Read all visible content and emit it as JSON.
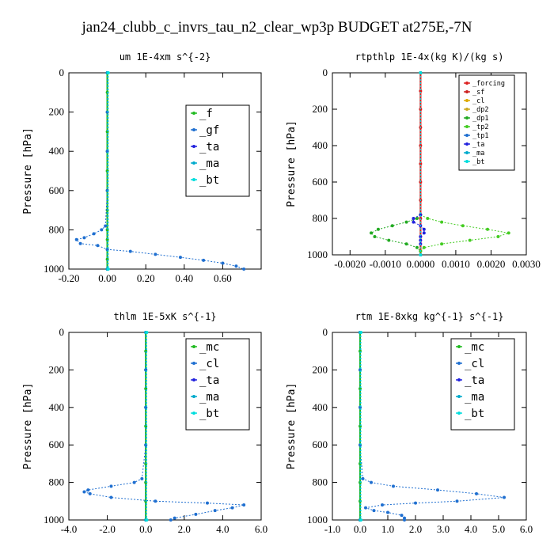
{
  "figure_title": "jan24_clubb_c_invrs_tau_n2_clear_wp3p  BUDGET at275E,-7N",
  "chart_data": [
    {
      "type": "line",
      "title": "um  1E-4xm s^{-2}",
      "ylabel": "Pressure [hPa]",
      "xlabel": "",
      "xlim": [
        -0.2,
        0.8
      ],
      "ylim": [
        1000,
        0
      ],
      "xticks": [
        "-0.20",
        "0.00",
        "0.20",
        "0.40",
        "0.60"
      ],
      "yticks": [
        "0",
        "200",
        "400",
        "600",
        "800",
        "1000"
      ],
      "legend": [
        "_f",
        "_gf",
        "_ta",
        "_ma",
        "_bt"
      ],
      "series": [
        {
          "name": "_f",
          "color": "#22bb22",
          "p": [
            0,
            100,
            200,
            300,
            400,
            500,
            600,
            700,
            800,
            850,
            900,
            950,
            1000
          ],
          "x": [
            0,
            0,
            0,
            0,
            0,
            0,
            0,
            0,
            0,
            0,
            0,
            0,
            0
          ]
        },
        {
          "name": "_gf",
          "color": "#1f6fd0",
          "p": [
            0,
            200,
            400,
            600,
            780,
            800,
            820,
            840,
            850,
            870,
            880,
            900,
            910,
            925,
            940,
            955,
            970,
            985,
            1000
          ],
          "x": [
            0,
            0,
            0,
            0,
            -0.01,
            -0.03,
            -0.07,
            -0.12,
            -0.16,
            -0.14,
            -0.05,
            0.0,
            0.12,
            0.25,
            0.38,
            0.5,
            0.6,
            0.67,
            0.71
          ]
        },
        {
          "name": "_ta",
          "color": "#2222dd",
          "p": [
            0,
            1000
          ],
          "x": [
            0,
            0
          ]
        },
        {
          "name": "_ma",
          "color": "#00aacc",
          "p": [
            0,
            1000
          ],
          "x": [
            0,
            0
          ]
        },
        {
          "name": "_bt",
          "color": "#00dddd",
          "p": [
            0,
            1000
          ],
          "x": [
            0.005,
            0.005
          ]
        }
      ]
    },
    {
      "type": "line",
      "title": "rtpthlp  1E-4x(kg K)/(kg s)",
      "ylabel": "Pressure [hPa]",
      "xlabel": "",
      "xlim": [
        -0.0025,
        0.003
      ],
      "ylim": [
        1000,
        0
      ],
      "xticks": [
        "-0.0020",
        "-0.0010",
        "0.0000",
        "0.0010",
        "0.0020",
        "0.0030"
      ],
      "yticks": [
        "0",
        "200",
        "400",
        "600",
        "800",
        "1000"
      ],
      "legend": [
        "_forcing",
        "_sf",
        "_cl",
        "_dp2",
        "_dp1",
        "_tp2",
        "_tp1",
        "_ta",
        "_ma",
        "_bt"
      ],
      "series": [
        {
          "name": "_forcing",
          "color": "#dd2222",
          "p": [
            0,
            100,
            200,
            300,
            400,
            500,
            600,
            700,
            800,
            900,
            1000
          ],
          "x": [
            0,
            0,
            0,
            0,
            0,
            0,
            0,
            0,
            0,
            0,
            0
          ]
        },
        {
          "name": "_sf",
          "color": "#cc2222",
          "p": [
            0,
            1000
          ],
          "x": [
            0,
            0
          ]
        },
        {
          "name": "_cl",
          "color": "#ddaa00",
          "p": [
            0,
            1000
          ],
          "x": [
            0,
            0
          ]
        },
        {
          "name": "_dp2",
          "color": "#ccaa22",
          "p": [
            0,
            1000
          ],
          "x": [
            0,
            0
          ]
        },
        {
          "name": "_dp1",
          "color": "#22aa22",
          "p": [
            780,
            800,
            820,
            840,
            860,
            880,
            900,
            920,
            940,
            960,
            980
          ],
          "x": [
            0,
            -0.0001,
            -0.0004,
            -0.0008,
            -0.0012,
            -0.0014,
            -0.0013,
            -0.0009,
            -0.0004,
            -0.0001,
            0
          ]
        },
        {
          "name": "_tp2",
          "color": "#44cc22",
          "p": [
            780,
            800,
            820,
            840,
            860,
            880,
            900,
            920,
            940,
            960,
            980
          ],
          "x": [
            0,
            0.0002,
            0.0006,
            0.0012,
            0.0019,
            0.0025,
            0.0022,
            0.0014,
            0.0006,
            0.0001,
            0
          ]
        },
        {
          "name": "_tp1",
          "color": "#1f6fd0",
          "p": [
            0,
            1000
          ],
          "x": [
            0,
            0
          ]
        },
        {
          "name": "_ta",
          "color": "#2222dd",
          "p": [
            780,
            800,
            820,
            840,
            860,
            880,
            900,
            920,
            940
          ],
          "x": [
            0,
            -0.0002,
            -0.0002,
            0,
            0.0001,
            0.0001,
            0,
            0,
            0
          ]
        },
        {
          "name": "_ma",
          "color": "#00aacc",
          "p": [
            0,
            1000
          ],
          "x": [
            0,
            0
          ]
        },
        {
          "name": "_bt",
          "color": "#00dddd",
          "p": [
            0,
            1000
          ],
          "x": [
            0,
            0
          ]
        }
      ]
    },
    {
      "type": "line",
      "title": "thlm  1E-5xK s^{-1}",
      "ylabel": "Pressure [hPa]",
      "xlabel": "",
      "xlim": [
        -4,
        6
      ],
      "ylim": [
        1000,
        0
      ],
      "xticks": [
        "-4.0",
        "-2.0",
        "0.0",
        "2.0",
        "4.0",
        "6.0"
      ],
      "yticks": [
        "0",
        "200",
        "400",
        "600",
        "800",
        "1000"
      ],
      "legend": [
        "_mc",
        "_cl",
        "_ta",
        "_ma",
        "_bt"
      ],
      "series": [
        {
          "name": "_mc",
          "color": "#22bb22",
          "p": [
            0,
            100,
            200,
            300,
            400,
            500,
            600,
            700,
            800,
            900,
            1000
          ],
          "x": [
            0,
            0,
            0,
            0,
            0,
            0,
            0,
            0,
            0,
            0,
            0
          ]
        },
        {
          "name": "_cl",
          "color": "#1f6fd0",
          "p": [
            0,
            200,
            400,
            600,
            780,
            800,
            820,
            840,
            850,
            860,
            880,
            900,
            910,
            920,
            935,
            950,
            970,
            990,
            1000
          ],
          "x": [
            0,
            0,
            0,
            0,
            -0.2,
            -0.6,
            -1.8,
            -3.0,
            -3.2,
            -2.9,
            -1.8,
            0.5,
            3.2,
            5.1,
            4.5,
            3.6,
            2.6,
            1.5,
            1.3
          ]
        },
        {
          "name": "_ta",
          "color": "#2222dd",
          "p": [
            0,
            1000
          ],
          "x": [
            0,
            0
          ]
        },
        {
          "name": "_ma",
          "color": "#00aacc",
          "p": [
            0,
            1000
          ],
          "x": [
            0,
            0
          ]
        },
        {
          "name": "_bt",
          "color": "#00dddd",
          "p": [
            0,
            1000
          ],
          "x": [
            0.05,
            0.05
          ]
        }
      ]
    },
    {
      "type": "line",
      "title": "rtm  1E-8xkg kg^{-1} s^{-1}",
      "ylabel": "Pressure [hPa]",
      "xlabel": "",
      "xlim": [
        -1,
        6
      ],
      "ylim": [
        1000,
        0
      ],
      "xticks": [
        "-1.0",
        "0.0",
        "1.0",
        "2.0",
        "3.0",
        "4.0",
        "5.0",
        "6.0"
      ],
      "yticks": [
        "0",
        "200",
        "400",
        "600",
        "800",
        "1000"
      ],
      "legend": [
        "_mc",
        "_cl",
        "_ta",
        "_ma",
        "_bt"
      ],
      "series": [
        {
          "name": "_mc",
          "color": "#22bb22",
          "p": [
            0,
            100,
            200,
            300,
            400,
            500,
            600,
            700,
            800,
            900,
            1000
          ],
          "x": [
            0,
            0,
            0,
            0,
            0,
            0,
            0,
            0,
            0,
            0,
            0
          ]
        },
        {
          "name": "_cl",
          "color": "#1f6fd0",
          "p": [
            0,
            200,
            400,
            600,
            780,
            800,
            820,
            840,
            860,
            880,
            900,
            910,
            920,
            935,
            950,
            960,
            975,
            990,
            1000
          ],
          "x": [
            0,
            0,
            0,
            0,
            0.1,
            0.4,
            1.2,
            2.8,
            4.2,
            5.2,
            3.5,
            2.0,
            0.8,
            0.2,
            0.5,
            1.0,
            1.5,
            1.6,
            1.6
          ]
        },
        {
          "name": "_ta",
          "color": "#2222dd",
          "p": [
            0,
            1000
          ],
          "x": [
            0,
            0
          ]
        },
        {
          "name": "_ma",
          "color": "#00aacc",
          "p": [
            0,
            1000
          ],
          "x": [
            0,
            0
          ]
        },
        {
          "name": "_bt",
          "color": "#00dddd",
          "p": [
            0,
            1000
          ],
          "x": [
            0.03,
            0.03
          ]
        }
      ]
    }
  ]
}
